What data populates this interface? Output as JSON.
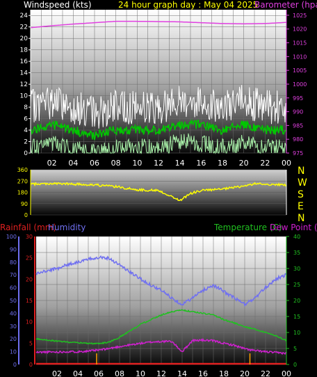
{
  "header": {
    "windspeed_label": "Windspeed (kts)",
    "title": "24 hour graph day : May 04 2025",
    "barometer_label": "Barometer (hpa)"
  },
  "compass_labels": [
    "N",
    "W",
    "S",
    "E",
    "N"
  ],
  "lower_labels": {
    "rainfall": "Rainfall (mm)",
    "humidity": "Humidity",
    "temperature": "Temperature (C)",
    "dewpoint": "Dew Point (C)"
  },
  "x_ticks": [
    "02",
    "04",
    "06",
    "08",
    "10",
    "12",
    "14",
    "16",
    "18",
    "20",
    "22",
    "00"
  ],
  "colors": {
    "wind_gust": "#ffffff",
    "wind_avg": "#00c800",
    "wind_low": "#a8f0a8",
    "barometer": "#e040e0",
    "direction": "#ffff00",
    "humidity": "#7070f0",
    "temperature": "#20c020",
    "dewpoint": "#d020d0",
    "rainfall": "#e02020",
    "rain_marker": "#ffa000"
  },
  "chart_data": [
    {
      "type": "line",
      "title": "24 hour graph day : May 04 2025",
      "x": [
        0,
        2,
        4,
        6,
        8,
        10,
        12,
        14,
        16,
        18,
        20,
        22,
        24
      ],
      "y_left": {
        "label": "Windspeed (kts)",
        "ylim": [
          0,
          25
        ],
        "ticks": [
          0,
          2,
          4,
          6,
          8,
          10,
          12,
          14,
          16,
          18,
          20,
          22,
          24
        ]
      },
      "y_right": {
        "label": "Barometer (hpa)",
        "ylim": [
          975,
          1027
        ],
        "ticks": [
          975,
          980,
          985,
          990,
          995,
          1000,
          1005,
          1010,
          1015,
          1020,
          1025
        ]
      },
      "series": [
        {
          "name": "Windspeed (kts)",
          "axis": "left",
          "values": [
            4,
            5,
            4,
            3,
            4,
            4,
            4,
            5,
            5,
            4,
            5,
            4,
            4
          ]
        },
        {
          "name": "Barometer (hpa)",
          "axis": "right",
          "values": [
            1020.5,
            1021.2,
            1021.8,
            1022.3,
            1022.8,
            1022.8,
            1022.7,
            1022.6,
            1022.3,
            1022.0,
            1021.9,
            1022.0,
            1022.4
          ]
        }
      ]
    },
    {
      "type": "line",
      "x": [
        0,
        2,
        4,
        6,
        8,
        10,
        12,
        14,
        15,
        16,
        18,
        20,
        21,
        24
      ],
      "y": {
        "ylim": [
          0,
          360
        ],
        "ticks": [
          0,
          90,
          180,
          270,
          360
        ]
      },
      "series": [
        {
          "name": "",
          "values": [
            245,
            250,
            245,
            240,
            225,
            200,
            195,
            115,
            170,
            195,
            205,
            230,
            248,
            238
          ]
        }
      ]
    },
    {
      "type": "line",
      "x": [
        0,
        1,
        2,
        3,
        4,
        5,
        6,
        7,
        8,
        9,
        10,
        11,
        12,
        13,
        14,
        15,
        16,
        17,
        18,
        19,
        20,
        21,
        22,
        23,
        24
      ],
      "y_axes": [
        {
          "label": "Rainfall (mm)",
          "ylim": [
            0,
            30
          ],
          "ticks": [
            0,
            5,
            10,
            15,
            20,
            25,
            30
          ]
        },
        {
          "label": "Humidity",
          "ylim": [
            0,
            100
          ],
          "ticks": [
            0,
            10,
            20,
            30,
            40,
            50,
            60,
            70,
            80,
            90,
            100
          ]
        },
        {
          "label": "Temperature (C)",
          "ylim": [
            0,
            40
          ],
          "ticks": [
            0,
            5,
            10,
            15,
            20,
            25,
            30,
            35,
            40
          ]
        }
      ],
      "series": [
        {
          "name": "Humidity",
          "axis": "Humidity",
          "values": [
            71,
            73,
            75,
            78,
            80,
            82,
            84,
            83,
            78,
            72,
            67,
            62,
            58,
            52,
            47,
            52,
            58,
            62,
            57,
            52,
            47,
            52,
            60,
            67,
            70
          ]
        },
        {
          "name": "Temperature (C)",
          "axis": "Temperature (C)",
          "values": [
            8,
            7.7,
            7.3,
            7,
            6.8,
            6.6,
            6.5,
            7,
            8.5,
            10.5,
            12.5,
            14,
            15.5,
            16.5,
            17,
            16.5,
            16,
            15.5,
            14,
            13,
            11.8,
            11,
            10,
            9,
            7.5
          ]
        },
        {
          "name": "Dew Point (C)",
          "axis": "Temperature (C)",
          "values": [
            3.8,
            3.9,
            3.9,
            4,
            4,
            4.2,
            4.5,
            5,
            5.6,
            6.1,
            6.6,
            7,
            7.2,
            7.2,
            4,
            7.5,
            7.6,
            7.4,
            6.6,
            6,
            4.9,
            4.3,
            4.0,
            3.7,
            3.5
          ]
        },
        {
          "name": "Rainfall (mm)",
          "axis": "Rainfall (mm)",
          "values": [
            0,
            0,
            0,
            0,
            0,
            0,
            0,
            0,
            0,
            0,
            0,
            0,
            0,
            0,
            0,
            0,
            0,
            0,
            0,
            0,
            0,
            0,
            0,
            0,
            0
          ]
        }
      ]
    }
  ]
}
